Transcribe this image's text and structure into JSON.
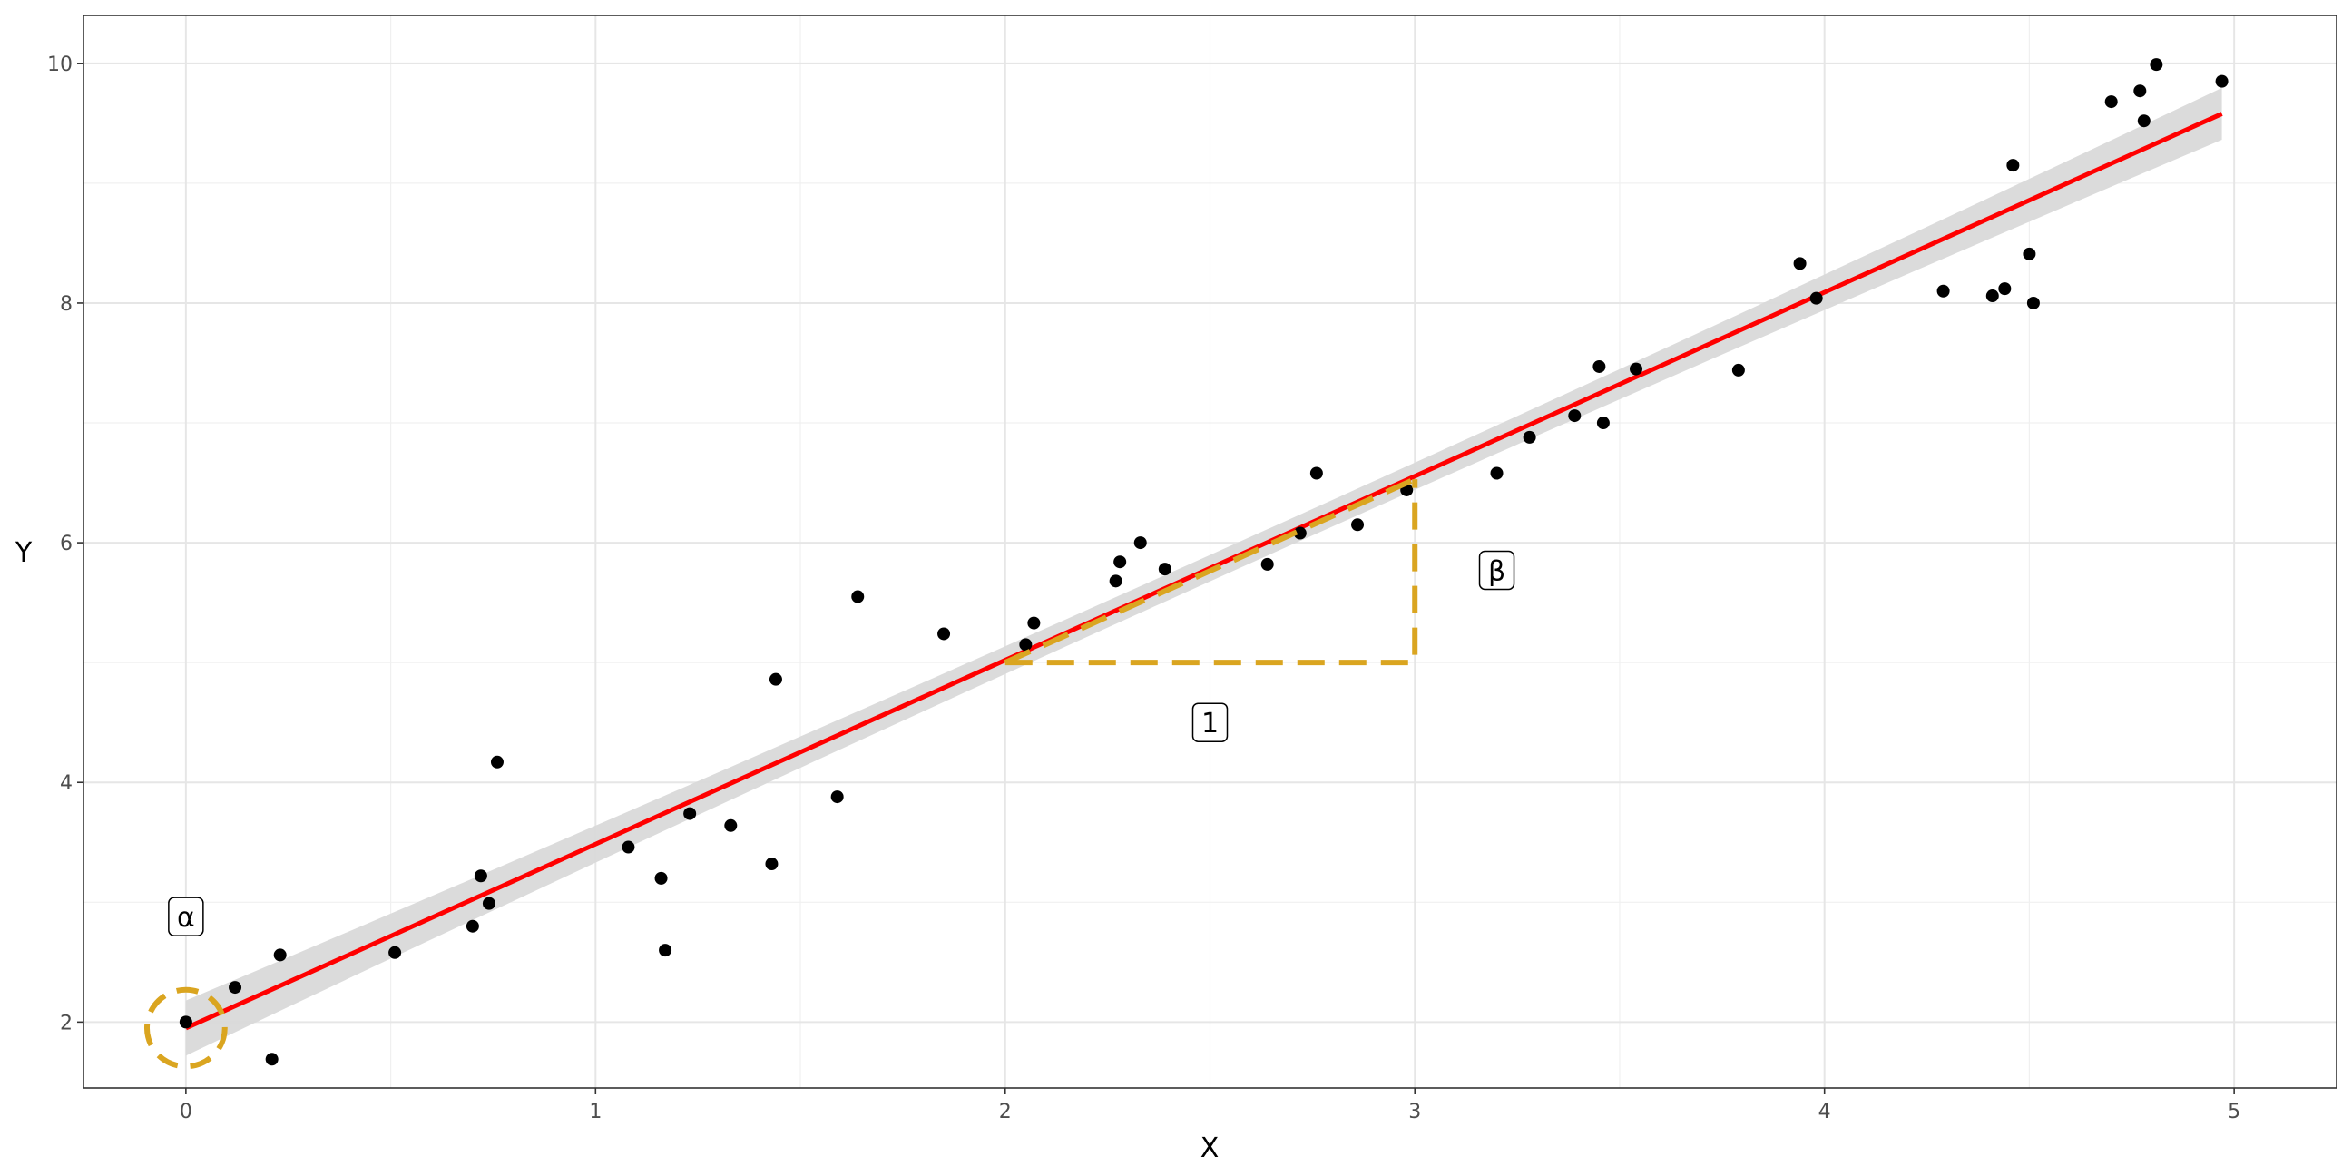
{
  "chart_data": {
    "type": "scatter",
    "title": "",
    "xlabel": "X",
    "ylabel": "Y",
    "xlim": [
      -0.25,
      5.25
    ],
    "ylim": [
      1.45,
      10.4
    ],
    "x_ticks": [
      0,
      1,
      2,
      3,
      4,
      5
    ],
    "y_ticks": [
      2,
      4,
      6,
      8,
      10
    ],
    "x_tick_labels": [
      "0",
      "1",
      "2",
      "3",
      "4",
      "5"
    ],
    "y_tick_labels": [
      "2",
      "4",
      "6",
      "8",
      "10"
    ],
    "grid": true,
    "points": [
      {
        "x": 0.0,
        "y": 2.0
      },
      {
        "x": 0.12,
        "y": 2.29
      },
      {
        "x": 0.21,
        "y": 1.69
      },
      {
        "x": 0.23,
        "y": 2.56
      },
      {
        "x": 0.51,
        "y": 2.58
      },
      {
        "x": 0.7,
        "y": 2.8
      },
      {
        "x": 0.72,
        "y": 3.22
      },
      {
        "x": 0.74,
        "y": 2.99
      },
      {
        "x": 0.76,
        "y": 4.17
      },
      {
        "x": 1.08,
        "y": 3.46
      },
      {
        "x": 1.16,
        "y": 3.2
      },
      {
        "x": 1.17,
        "y": 2.6
      },
      {
        "x": 1.23,
        "y": 3.74
      },
      {
        "x": 1.33,
        "y": 3.64
      },
      {
        "x": 1.43,
        "y": 3.32
      },
      {
        "x": 1.44,
        "y": 4.86
      },
      {
        "x": 1.59,
        "y": 3.88
      },
      {
        "x": 1.64,
        "y": 5.55
      },
      {
        "x": 1.85,
        "y": 5.24
      },
      {
        "x": 2.05,
        "y": 5.15
      },
      {
        "x": 2.07,
        "y": 5.33
      },
      {
        "x": 2.27,
        "y": 5.68
      },
      {
        "x": 2.28,
        "y": 5.84
      },
      {
        "x": 2.33,
        "y": 6.0
      },
      {
        "x": 2.39,
        "y": 5.78
      },
      {
        "x": 2.64,
        "y": 5.82
      },
      {
        "x": 2.72,
        "y": 6.08
      },
      {
        "x": 2.76,
        "y": 6.58
      },
      {
        "x": 2.86,
        "y": 6.15
      },
      {
        "x": 2.98,
        "y": 6.44
      },
      {
        "x": 3.2,
        "y": 6.58
      },
      {
        "x": 3.28,
        "y": 6.88
      },
      {
        "x": 3.39,
        "y": 7.06
      },
      {
        "x": 3.45,
        "y": 7.47
      },
      {
        "x": 3.46,
        "y": 7.0
      },
      {
        "x": 3.54,
        "y": 7.45
      },
      {
        "x": 3.79,
        "y": 7.44
      },
      {
        "x": 3.94,
        "y": 8.33
      },
      {
        "x": 3.98,
        "y": 8.04
      },
      {
        "x": 4.29,
        "y": 8.1
      },
      {
        "x": 4.41,
        "y": 8.06
      },
      {
        "x": 4.44,
        "y": 8.12
      },
      {
        "x": 4.46,
        "y": 9.15
      },
      {
        "x": 4.5,
        "y": 8.41
      },
      {
        "x": 4.51,
        "y": 8.0
      },
      {
        "x": 4.7,
        "y": 9.68
      },
      {
        "x": 4.77,
        "y": 9.77
      },
      {
        "x": 4.78,
        "y": 9.52
      },
      {
        "x": 4.81,
        "y": 9.99
      },
      {
        "x": 4.97,
        "y": 9.85
      }
    ],
    "fit_line": {
      "x_start": 0.0,
      "x_end": 4.97,
      "intercept": 1.95,
      "slope": 1.535,
      "color": "#ff0000"
    },
    "confidence_band": {
      "color": "#d9d9d9",
      "half_width_min": 0.11,
      "half_width_max": 0.23
    },
    "annotations": {
      "alpha_label": "α",
      "beta_label": "β",
      "one_label": "1",
      "accent_color": "#daa520",
      "alpha_circle": {
        "x": 0.0,
        "y": 1.95,
        "rx_data": 0.095,
        "ry_data": 0.32
      },
      "triangle": {
        "x0": 2.0,
        "y0": 5.0,
        "x1": 3.0,
        "y1": 6.53
      },
      "alpha_label_pos": {
        "x": 0.0,
        "y": 2.88
      },
      "beta_label_pos": {
        "x": 3.2,
        "y": 5.77
      },
      "one_label_pos": {
        "x": 2.5,
        "y": 4.5
      }
    }
  }
}
